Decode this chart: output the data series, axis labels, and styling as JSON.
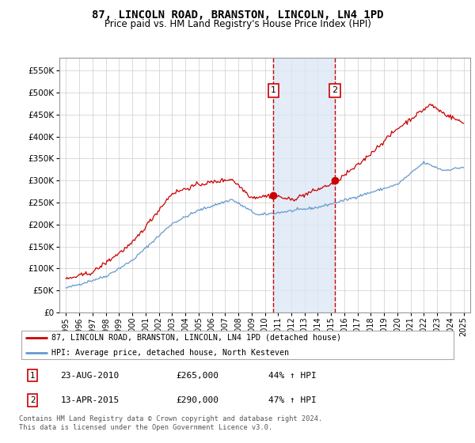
{
  "title": "87, LINCOLN ROAD, BRANSTON, LINCOLN, LN4 1PD",
  "subtitle": "Price paid vs. HM Land Registry's House Price Index (HPI)",
  "legend_line1": "87, LINCOLN ROAD, BRANSTON, LINCOLN, LN4 1PD (detached house)",
  "legend_line2": "HPI: Average price, detached house, North Kesteven",
  "transaction1_label": "1",
  "transaction1_date": "23-AUG-2010",
  "transaction1_price": "£265,000",
  "transaction1_pct": "44% ↑ HPI",
  "transaction2_label": "2",
  "transaction2_date": "13-APR-2015",
  "transaction2_price": "£290,000",
  "transaction2_pct": "47% ↑ HPI",
  "footer": "Contains HM Land Registry data © Crown copyright and database right 2024.\nThis data is licensed under the Open Government Licence v3.0.",
  "hpi_color": "#6699cc",
  "price_color": "#cc0000",
  "transaction1_x": 2010.65,
  "transaction2_x": 2015.28,
  "ylim": [
    0,
    580000
  ],
  "yticks": [
    0,
    50000,
    100000,
    150000,
    200000,
    250000,
    300000,
    350000,
    400000,
    450000,
    500000,
    550000
  ],
  "xlim": [
    1994.5,
    2025.5
  ],
  "shade_color": "#dce8f5",
  "note_color": "#555555"
}
